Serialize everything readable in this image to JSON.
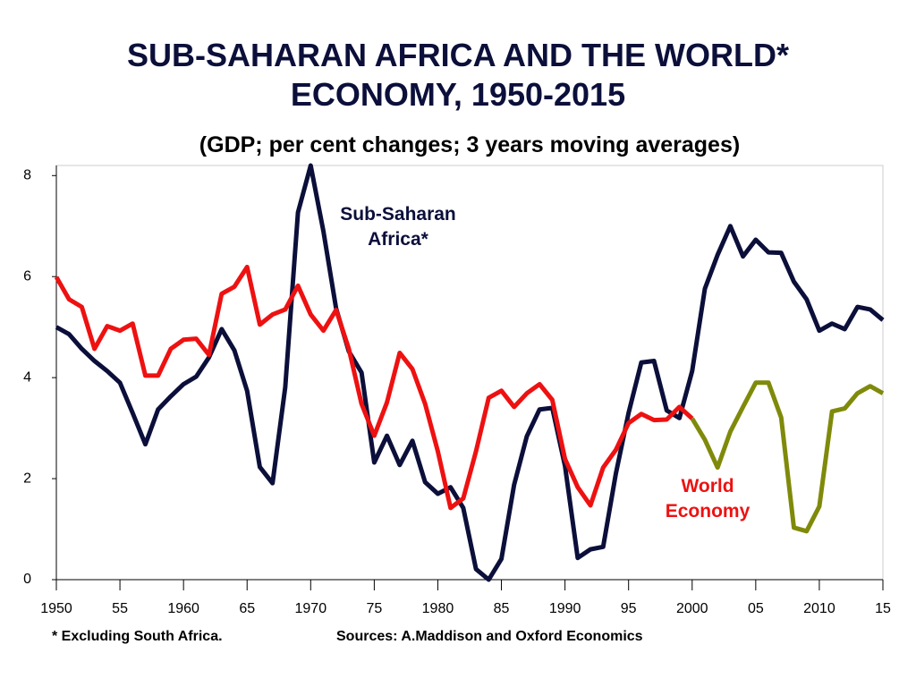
{
  "chart_data": {
    "type": "line",
    "title": "SUB-SAHARAN AFRICA AND THE WORLD* ECONOMY, 1950-2015",
    "subtitle": "(GDP; per cent changes; 3 years moving averages)",
    "annotations": [
      {
        "text": "Sub-Saharan Africa*",
        "color": "#0b0f3a"
      },
      {
        "text": "World Economy",
        "color": "#ee1111"
      }
    ],
    "footnotes": [
      "* Excluding South Africa.",
      "Sources: A.Maddison and Oxford Economics"
    ],
    "x": [
      1950,
      1951,
      1952,
      1953,
      1954,
      1955,
      1956,
      1957,
      1958,
      1959,
      1960,
      1961,
      1962,
      1963,
      1964,
      1965,
      1966,
      1967,
      1968,
      1969,
      1970,
      1971,
      1972,
      1973,
      1974,
      1975,
      1976,
      1977,
      1978,
      1979,
      1980,
      1981,
      1982,
      1983,
      1984,
      1985,
      1986,
      1987,
      1988,
      1989,
      1990,
      1991,
      1992,
      1993,
      1994,
      1995,
      1996,
      1997,
      1998,
      1999,
      2000,
      2001,
      2002,
      2003,
      2004,
      2005,
      2006,
      2007,
      2008,
      2009,
      2010,
      2011,
      2012,
      2013,
      2014,
      2015
    ],
    "series": [
      {
        "color": "#0b0f3a",
        "values": [
          5.0,
          4.86,
          4.57,
          4.33,
          4.13,
          3.9,
          3.3,
          2.68,
          3.37,
          3.63,
          3.87,
          4.02,
          4.4,
          4.96,
          4.54,
          3.74,
          2.23,
          1.91,
          3.81,
          7.27,
          8.2,
          6.9,
          5.37,
          4.52,
          4.1,
          2.32,
          2.85,
          2.27,
          2.75,
          1.93,
          1.7,
          1.83,
          1.42,
          0.21,
          0.0,
          0.41,
          1.88,
          2.84,
          3.37,
          3.4,
          2.25,
          0.43,
          0.6,
          0.65,
          2.1,
          3.3,
          4.3,
          4.33,
          3.35,
          3.2,
          4.13,
          5.76,
          6.43,
          7.0,
          6.4,
          6.73,
          6.48,
          6.47,
          5.9,
          5.55,
          4.93,
          5.07,
          4.96,
          5.4,
          5.35,
          5.14
        ]
      },
      {
        "color": "#ee1111",
        "values": [
          5.99,
          5.55,
          5.4,
          4.57,
          5.02,
          4.93,
          5.07,
          4.04,
          4.04,
          4.57,
          4.75,
          4.77,
          4.45,
          5.66,
          5.8,
          6.19,
          5.05,
          5.25,
          5.35,
          5.82,
          5.25,
          4.93,
          5.34,
          4.57,
          3.48,
          2.85,
          3.51,
          4.49,
          4.17,
          3.48,
          2.54,
          1.42,
          1.61,
          2.54,
          3.6,
          3.74,
          3.42,
          3.69,
          3.87,
          3.56,
          2.39,
          1.83,
          1.47,
          2.22,
          2.57,
          3.1,
          3.28,
          3.16,
          3.17,
          3.42,
          3.19,
          null,
          null,
          null,
          null,
          null,
          null,
          null,
          null,
          null,
          null,
          null,
          null,
          null,
          null,
          null
        ]
      },
      {
        "color": "#7f8a0a",
        "values": [
          null,
          null,
          null,
          null,
          null,
          null,
          null,
          null,
          null,
          null,
          null,
          null,
          null,
          null,
          null,
          null,
          null,
          null,
          null,
          null,
          null,
          null,
          null,
          null,
          null,
          null,
          null,
          null,
          null,
          null,
          null,
          null,
          null,
          null,
          null,
          null,
          null,
          null,
          null,
          null,
          null,
          null,
          null,
          null,
          null,
          null,
          null,
          null,
          null,
          null,
          3.19,
          2.77,
          2.22,
          2.93,
          3.42,
          3.9,
          3.9,
          3.21,
          1.03,
          0.96,
          1.45,
          3.33,
          3.39,
          3.69,
          3.83,
          3.69
        ]
      }
    ],
    "xlim": [
      1950,
      2015
    ],
    "xticks": [
      1950,
      {
        "value": 1955,
        "label": "55"
      },
      1960,
      {
        "value": 1965,
        "label": "65"
      },
      1970,
      {
        "value": 1975,
        "label": "75"
      },
      1980,
      {
        "value": 1985,
        "label": "85"
      },
      1990,
      {
        "value": 1995,
        "label": "95"
      },
      2000,
      {
        "value": 2005,
        "label": "05"
      },
      2010,
      {
        "value": 2015,
        "label": "15"
      }
    ],
    "ylim": [
      0,
      8.2
    ],
    "yticks": [
      0,
      2,
      4,
      6,
      8
    ]
  }
}
